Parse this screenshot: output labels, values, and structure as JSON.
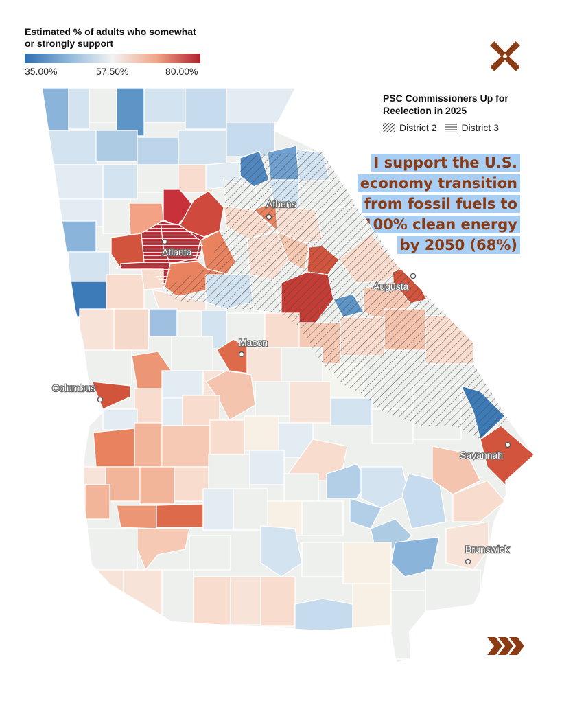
{
  "legend": {
    "title": "Estimated % of adults who somewhat or strongly support",
    "ticks": [
      "35.00%",
      "57.50%",
      "80.00%"
    ]
  },
  "psc": {
    "title": "PSC Commissioners Up for Reelection in 2025",
    "district2": "District 2",
    "district3": "District 3"
  },
  "statement": "I support the U.S. economy transition from fossil fuels to 100% clean energy by 2050 (68%)",
  "cities": {
    "atlanta": "Atlanta",
    "athens": "Athens",
    "augusta": "Augusta",
    "macon": "Macon",
    "columbus": "Columbus",
    "savannah": "Savannah",
    "brunswick": "Brunswick"
  },
  "colors": {
    "deep_blue": "#3d7ab8",
    "mid_blue": "#8ab4d9",
    "light_blue": "#d3e3f0",
    "neutral": "#eef0ee",
    "light_peach": "#f8dccd",
    "peach": "#f3b59a",
    "orange": "#e9825e",
    "red": "#d2543c",
    "deep_red": "#b52a33",
    "brand_brown": "#8a3b14",
    "statement_bg": "#a8cff3"
  }
}
